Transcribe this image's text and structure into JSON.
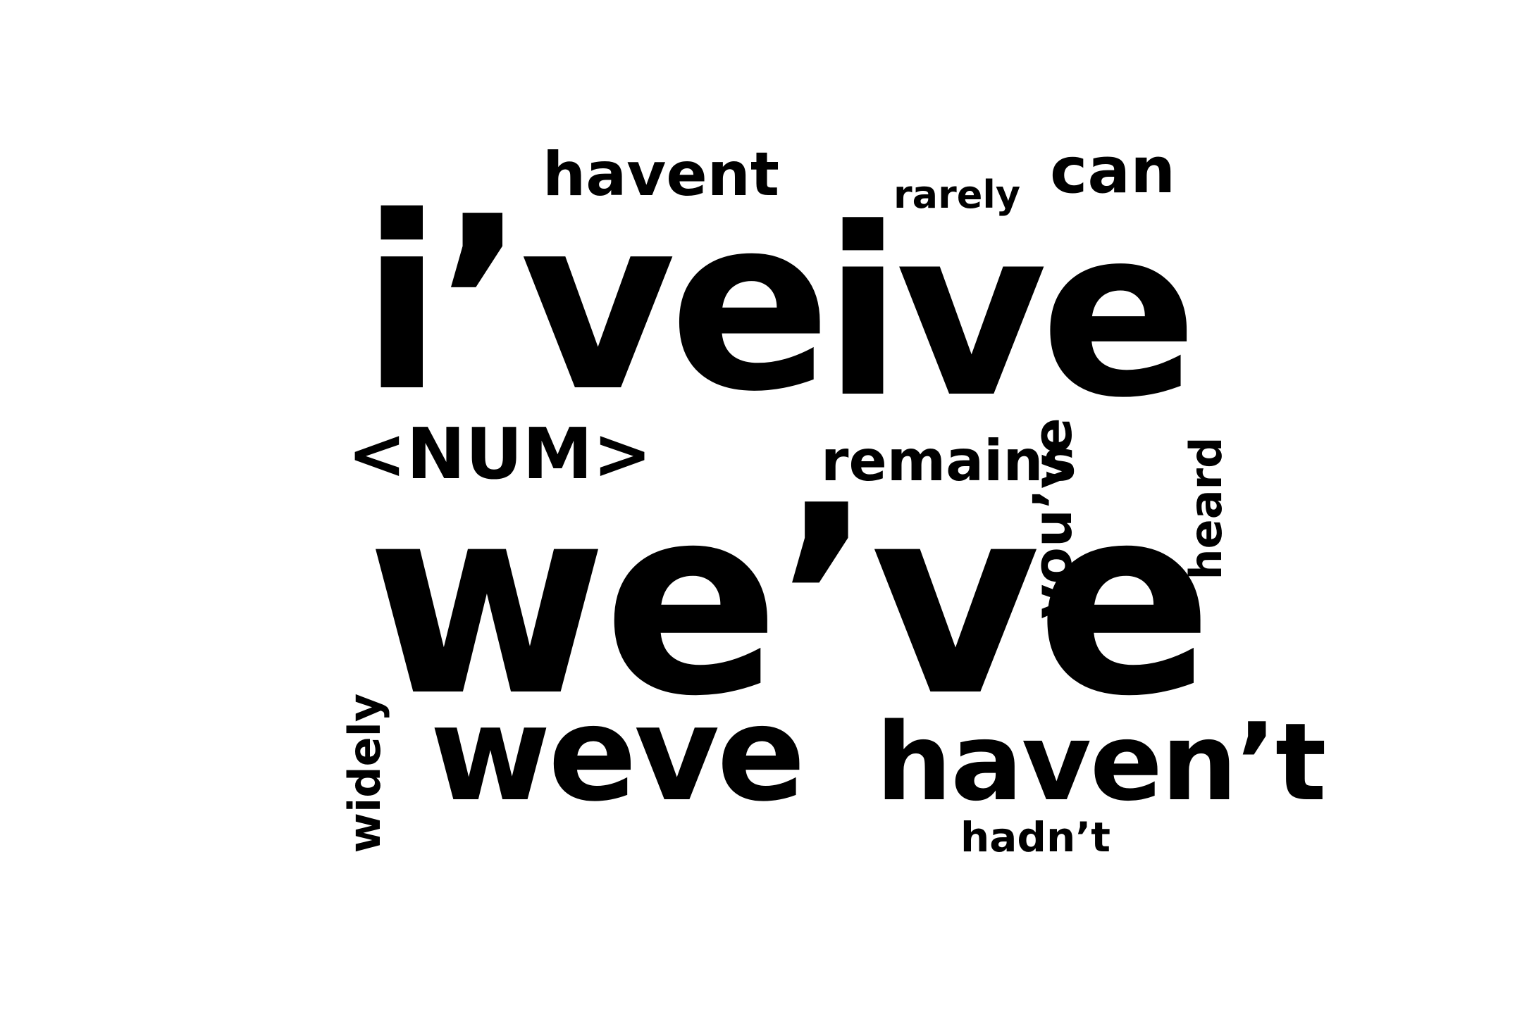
{
  "words": {
    "weve_apos": "we’ve",
    "ive_apos": "i’ve",
    "ive": "ive",
    "weve": "weve",
    "havent_apos": "haven’t",
    "num": "<NUM>",
    "remains": "remains",
    "havent": "havent",
    "can": "can",
    "rarely": "rarely",
    "hadnt": "hadn’t",
    "youve": "you’ve",
    "heard": "heard",
    "widely": "widely"
  },
  "colors": {
    "text": "#000000",
    "background": "#ffffff"
  }
}
